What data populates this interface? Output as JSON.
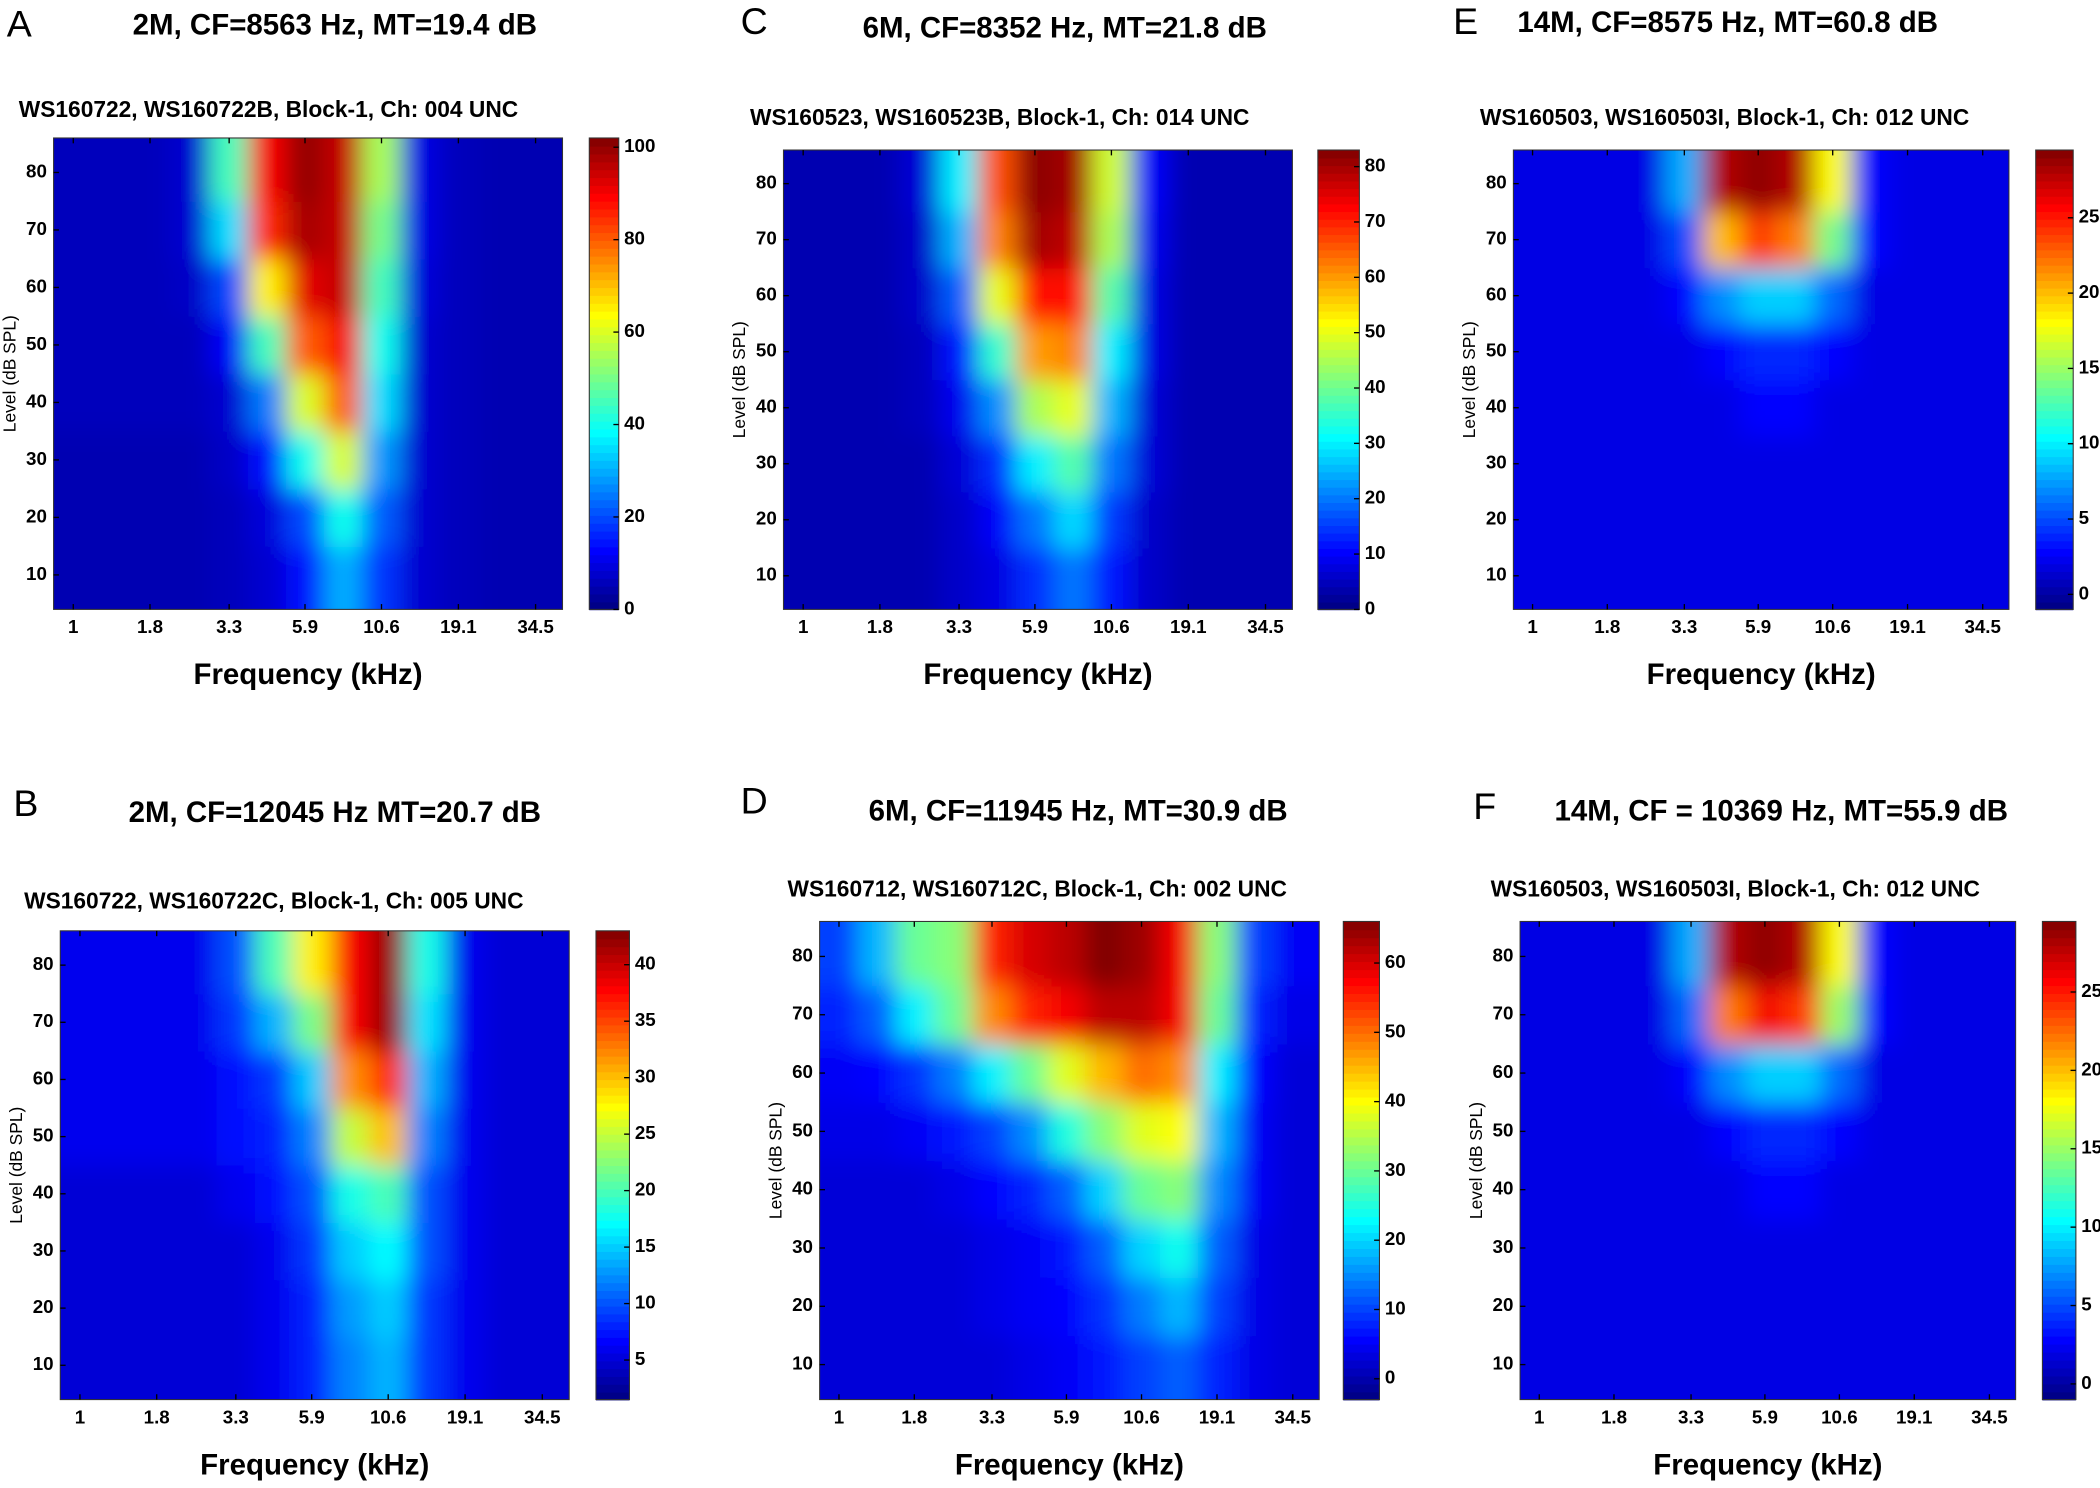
{
  "chart_data": [
    {
      "panel": "A",
      "type": "heatmap",
      "title": "2M, CF=8563 Hz, MT=19.4 dB",
      "subtitle": "WS160722, WS160722B, Block-1, Ch:  004 UNC",
      "x_label": "Frequency (kHz)",
      "y_label": "Level (dB SPL)",
      "log_x": true,
      "colormap": "jet",
      "x": [
        1,
        1.35,
        1.8,
        2.45,
        3.3,
        4.4,
        5.9,
        7.9,
        10.6,
        14.2,
        19.1,
        25.7,
        34.5
      ],
      "y": [
        10,
        20,
        30,
        40,
        50,
        60,
        70,
        80
      ],
      "z": [
        [
          5,
          5,
          5,
          5,
          6,
          8,
          14,
          30,
          18,
          8,
          6,
          5,
          5
        ],
        [
          5,
          5,
          5,
          5,
          6,
          9,
          20,
          40,
          22,
          8,
          6,
          5,
          5
        ],
        [
          5,
          5,
          5,
          5,
          7,
          14,
          40,
          60,
          28,
          8,
          6,
          5,
          5
        ],
        [
          6,
          6,
          6,
          6,
          8,
          25,
          60,
          80,
          35,
          8,
          6,
          5,
          5
        ],
        [
          6,
          6,
          6,
          6,
          12,
          45,
          80,
          90,
          40,
          8,
          6,
          5,
          5
        ],
        [
          6,
          6,
          6,
          7,
          20,
          65,
          92,
          95,
          45,
          9,
          6,
          5,
          5
        ],
        [
          6,
          6,
          6,
          8,
          35,
          85,
          98,
          95,
          50,
          10,
          6,
          5,
          5
        ],
        [
          6,
          6,
          6,
          8,
          45,
          90,
          100,
          95,
          55,
          10,
          6,
          5,
          5
        ]
      ],
      "xlim": [
        0.86,
        42.4
      ],
      "ylim": [
        4,
        86
      ],
      "xticks": [
        1,
        1.8,
        3.3,
        5.9,
        10.6,
        19.1,
        34.5
      ],
      "yticks": [
        10,
        20,
        30,
        40,
        50,
        60,
        70,
        80
      ],
      "zlim": [
        0,
        102
      ],
      "zticks": [
        0,
        20,
        40,
        60,
        80,
        100
      ]
    },
    {
      "panel": "B",
      "type": "heatmap",
      "title": "2M, CF=12045 Hz  MT=20.7 dB",
      "subtitle": "WS160722, WS160722C, Block-1, Ch:  005 UNC",
      "x_label": "Frequency (kHz)",
      "y_label": "Level (dB SPL)",
      "log_x": true,
      "colormap": "jet",
      "x": [
        1,
        1.35,
        1.8,
        2.45,
        3.3,
        4.4,
        5.9,
        7.9,
        10.6,
        14.2,
        19.1,
        25.7,
        34.5
      ],
      "y": [
        10,
        20,
        30,
        40,
        50,
        60,
        70,
        80
      ],
      "z": [
        [
          5,
          5,
          5,
          5,
          5,
          6,
          8,
          12,
          14,
          9,
          6,
          5,
          5
        ],
        [
          5,
          5,
          5,
          5,
          5,
          6,
          8,
          13,
          15,
          9,
          6,
          5,
          5
        ],
        [
          5,
          5,
          5,
          5,
          5,
          6,
          9,
          15,
          17,
          10,
          6,
          5,
          5
        ],
        [
          5,
          5,
          5,
          5,
          6,
          7,
          10,
          18,
          20,
          10,
          6,
          5,
          5
        ],
        [
          6,
          6,
          6,
          6,
          7,
          8,
          12,
          25,
          30,
          12,
          6,
          5,
          5
        ],
        [
          6,
          6,
          6,
          6,
          7,
          9,
          15,
          32,
          36,
          14,
          6,
          5,
          5
        ],
        [
          6,
          6,
          6,
          6,
          9,
          14,
          22,
          38,
          42,
          16,
          6,
          5,
          5
        ],
        [
          6,
          6,
          6,
          6,
          10,
          20,
          28,
          38,
          42,
          18,
          6,
          5,
          5
        ]
      ],
      "xlim": [
        0.86,
        42.4
      ],
      "ylim": [
        4,
        86
      ],
      "xticks": [
        1,
        1.8,
        3.3,
        5.9,
        10.6,
        19.1,
        34.5
      ],
      "yticks": [
        10,
        20,
        30,
        40,
        50,
        60,
        70,
        80
      ],
      "zlim": [
        1.5,
        43
      ],
      "zticks": [
        5,
        10,
        15,
        20,
        25,
        30,
        35,
        40
      ]
    },
    {
      "panel": "C",
      "type": "heatmap",
      "title": "6M,  CF=8352 Hz,  MT=21.8 dB",
      "subtitle": "WS160523, WS160523B, Block-1, Ch:  014 UNC",
      "x_label": "Frequency (kHz)",
      "y_label": "Level (dB SPL)",
      "log_x": true,
      "colormap": "jet",
      "x": [
        1,
        1.35,
        1.8,
        2.45,
        3.3,
        4.4,
        5.9,
        7.9,
        10.6,
        14.2,
        19.1,
        25.7,
        34.5
      ],
      "y": [
        10,
        20,
        30,
        40,
        50,
        60,
        70,
        80
      ],
      "z": [
        [
          4,
          4,
          4,
          4,
          6,
          8,
          14,
          20,
          12,
          6,
          4,
          4,
          4
        ],
        [
          4,
          4,
          4,
          4,
          6,
          10,
          20,
          28,
          15,
          6,
          4,
          4,
          4
        ],
        [
          4,
          4,
          4,
          4,
          7,
          14,
          30,
          38,
          20,
          7,
          4,
          4,
          4
        ],
        [
          4,
          4,
          4,
          5,
          9,
          22,
          45,
          50,
          25,
          7,
          4,
          4,
          4
        ],
        [
          4,
          4,
          4,
          5,
          12,
          35,
          60,
          62,
          30,
          8,
          4,
          4,
          4
        ],
        [
          4,
          4,
          4,
          6,
          18,
          50,
          72,
          72,
          38,
          8,
          4,
          4,
          4
        ],
        [
          4,
          4,
          4,
          6,
          25,
          62,
          80,
          78,
          45,
          9,
          4,
          4,
          4
        ],
        [
          4,
          4,
          4,
          7,
          30,
          66,
          82,
          80,
          48,
          10,
          4,
          4,
          4
        ]
      ],
      "xlim": [
        0.86,
        42.4
      ],
      "ylim": [
        4,
        86
      ],
      "xticks": [
        1,
        1.8,
        3.3,
        5.9,
        10.6,
        19.1,
        34.5
      ],
      "yticks": [
        10,
        20,
        30,
        40,
        50,
        60,
        70,
        80
      ],
      "zlim": [
        0,
        83
      ],
      "zticks": [
        0,
        10,
        20,
        30,
        40,
        50,
        60,
        70,
        80
      ]
    },
    {
      "panel": "D",
      "type": "heatmap",
      "title": "6M,  CF=11945 Hz,  MT=30.9 dB",
      "subtitle": "WS160712, WS160712C, Block-1, Ch:  002 UNC",
      "x_label": "Frequency (kHz)",
      "y_label": "Level (dB SPL)",
      "log_x": true,
      "colormap": "jet",
      "x": [
        1,
        1.35,
        1.8,
        2.45,
        3.3,
        4.4,
        5.9,
        7.9,
        10.6,
        14.2,
        19.1,
        25.7,
        34.5
      ],
      "y": [
        10,
        20,
        30,
        40,
        50,
        60,
        70,
        80
      ],
      "z": [
        [
          3,
          3,
          3,
          3,
          3,
          4,
          5,
          7,
          10,
          12,
          8,
          4,
          3
        ],
        [
          3,
          3,
          3,
          3,
          4,
          5,
          6,
          9,
          14,
          18,
          10,
          4,
          3
        ],
        [
          3,
          3,
          3,
          3,
          4,
          5,
          7,
          12,
          20,
          24,
          12,
          4,
          3
        ],
        [
          3,
          3,
          3,
          4,
          6,
          8,
          12,
          20,
          30,
          32,
          15,
          5,
          3
        ],
        [
          4,
          4,
          5,
          7,
          10,
          15,
          25,
          32,
          38,
          40,
          18,
          5,
          3
        ],
        [
          5,
          6,
          9,
          14,
          22,
          30,
          38,
          45,
          50,
          48,
          22,
          6,
          3
        ],
        [
          8,
          12,
          22,
          30,
          48,
          55,
          58,
          62,
          62,
          58,
          30,
          8,
          4
        ],
        [
          10,
          18,
          30,
          32,
          55,
          60,
          62,
          66,
          64,
          58,
          32,
          10,
          5
        ]
      ],
      "xlim": [
        0.86,
        42.4
      ],
      "ylim": [
        4,
        86
      ],
      "xticks": [
        1,
        1.8,
        3.3,
        5.9,
        10.6,
        19.1,
        34.5
      ],
      "yticks": [
        10,
        20,
        30,
        40,
        50,
        60,
        70,
        80
      ],
      "zlim": [
        -3,
        66
      ],
      "zticks": [
        0,
        10,
        20,
        30,
        40,
        50,
        60
      ]
    },
    {
      "panel": "E",
      "type": "heatmap",
      "title": "14M, CF=8575 Hz, MT=60.8 dB",
      "subtitle": "WS160503, WS160503I, Block-1, Ch:  012 UNC",
      "x_label": "Frequency (kHz)",
      "y_label": "Level (dB SPL)",
      "log_x": true,
      "colormap": "jet",
      "x": [
        1,
        1.35,
        1.8,
        2.45,
        3.3,
        4.4,
        5.9,
        7.9,
        10.6,
        14.2,
        19.1,
        25.7,
        34.5
      ],
      "y": [
        10,
        20,
        30,
        40,
        50,
        60,
        70,
        80
      ],
      "z": [
        [
          2,
          2,
          2,
          2,
          2,
          2,
          2,
          2,
          2,
          2,
          2,
          2,
          2
        ],
        [
          2,
          2,
          2,
          2,
          2,
          2,
          2,
          2,
          2,
          2,
          2,
          2,
          2
        ],
        [
          2,
          2,
          2,
          2,
          2,
          2,
          2,
          2,
          2,
          2,
          2,
          2,
          2
        ],
        [
          2,
          2,
          2,
          2,
          2,
          2,
          3,
          3,
          2,
          2,
          2,
          2,
          2
        ],
        [
          2,
          2,
          2,
          2,
          2,
          3,
          4,
          4,
          3,
          2,
          2,
          2,
          2
        ],
        [
          2,
          2,
          2,
          2,
          3,
          7,
          9,
          9,
          6,
          2,
          2,
          2,
          2
        ],
        [
          2,
          2,
          2,
          2,
          5,
          20,
          24,
          22,
          14,
          3,
          2,
          2,
          2
        ],
        [
          2,
          2,
          2,
          2,
          8,
          28,
          29,
          28,
          18,
          3,
          2,
          2,
          2
        ]
      ],
      "xlim": [
        0.86,
        42.4
      ],
      "ylim": [
        4,
        86
      ],
      "xticks": [
        1,
        1.8,
        3.3,
        5.9,
        10.6,
        19.1,
        34.5
      ],
      "yticks": [
        10,
        20,
        30,
        40,
        50,
        60,
        70,
        80
      ],
      "zlim": [
        -1,
        29.5
      ],
      "zticks": [
        0,
        5,
        10,
        15,
        20,
        25
      ]
    },
    {
      "panel": "F",
      "type": "heatmap",
      "title": "14M,  CF = 10369 Hz,  MT=55.9 dB",
      "subtitle": "WS160503, WS160503I, Block-1, Ch:  012 UNC",
      "x_label": "Frequency (kHz)",
      "y_label": "Level (dB SPL)",
      "log_x": true,
      "colormap": "jet",
      "x": [
        1,
        1.35,
        1.8,
        2.45,
        3.3,
        4.4,
        5.9,
        7.9,
        10.6,
        14.2,
        19.1,
        25.7,
        34.5
      ],
      "y": [
        10,
        20,
        30,
        40,
        50,
        60,
        70,
        80
      ],
      "z": [
        [
          2,
          2,
          2,
          2,
          2,
          2,
          2,
          2,
          2,
          2,
          2,
          2,
          2
        ],
        [
          2,
          2,
          2,
          2,
          2,
          2,
          2,
          2,
          2,
          2,
          2,
          2,
          2
        ],
        [
          2,
          2,
          2,
          2,
          2,
          2,
          2,
          2,
          2,
          2,
          2,
          2,
          2
        ],
        [
          2,
          2,
          2,
          2,
          2,
          2,
          3,
          3,
          2,
          2,
          2,
          2,
          2
        ],
        [
          2,
          2,
          2,
          2,
          2,
          3,
          4,
          4,
          3,
          2,
          2,
          2,
          2
        ],
        [
          2,
          2,
          2,
          2,
          3,
          7,
          9,
          9,
          6,
          2,
          2,
          2,
          2
        ],
        [
          2,
          2,
          2,
          2,
          6,
          22,
          26,
          24,
          15,
          3,
          2,
          2,
          2
        ],
        [
          2,
          2,
          2,
          2,
          8,
          28,
          29,
          28,
          18,
          3,
          2,
          2,
          2
        ]
      ],
      "xlim": [
        0.86,
        42.4
      ],
      "ylim": [
        4,
        86
      ],
      "xticks": [
        1,
        1.8,
        3.3,
        5.9,
        10.6,
        19.1,
        34.5
      ],
      "yticks": [
        10,
        20,
        30,
        40,
        50,
        60,
        70,
        80
      ],
      "zlim": [
        -1,
        29.5
      ],
      "zticks": [
        0,
        5,
        10,
        15,
        20,
        25
      ]
    }
  ]
}
